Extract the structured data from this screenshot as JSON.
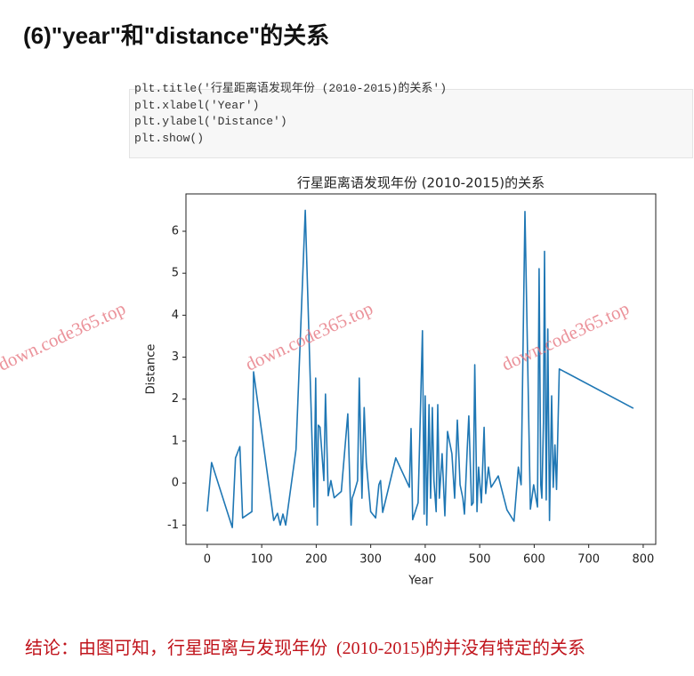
{
  "heading": "(6)\"year\"和\"distance\"的关系",
  "code": {
    "lines": [
      "plt.title('行星距离语发现年份 (2010-2015)的关系')",
      "plt.xlabel('Year')",
      "plt.ylabel('Distance')",
      "plt.show()"
    ]
  },
  "chart_data": {
    "type": "line",
    "title": "行星距离语发现年份 (2010-2015)的关系",
    "xlabel": "Year",
    "ylabel": "Distance",
    "color": "#1f77b4",
    "x": [
      0,
      8,
      46,
      52,
      60,
      65,
      82,
      85,
      122,
      129,
      134,
      139,
      144,
      163,
      180,
      196,
      199,
      202,
      204,
      207,
      214,
      217,
      222,
      227,
      233,
      246,
      258,
      264,
      266,
      269,
      276,
      279,
      284,
      288,
      292,
      300,
      309,
      315,
      318,
      322,
      346,
      371,
      374,
      377,
      387,
      395,
      398,
      400,
      403,
      407,
      410,
      413,
      416,
      420,
      423,
      426,
      431,
      436,
      441,
      449,
      454,
      459,
      464,
      469,
      472,
      477,
      480,
      485,
      488,
      491,
      495,
      498,
      503,
      508,
      511,
      516,
      521,
      534,
      550,
      563,
      571,
      576,
      583,
      593,
      599,
      606,
      609,
      612,
      614,
      617,
      619,
      622,
      625,
      628,
      632,
      635,
      638,
      641,
      646,
      782
    ],
    "values": [
      -0.68,
      0.49,
      -1.06,
      0.6,
      0.87,
      -0.83,
      -0.68,
      2.65,
      -0.89,
      -0.72,
      -1.0,
      -0.74,
      -1.0,
      0.8,
      6.5,
      -0.57,
      2.5,
      -1.0,
      1.38,
      1.33,
      0.06,
      2.12,
      -0.3,
      0.06,
      -0.35,
      -0.2,
      1.65,
      -1.0,
      -0.36,
      -0.25,
      0.06,
      2.5,
      -0.36,
      1.8,
      0.49,
      -0.68,
      -0.83,
      -0.04,
      0.06,
      -0.7,
      0.6,
      -0.1,
      1.3,
      -0.87,
      -0.47,
      3.63,
      -0.74,
      2.08,
      -1.0,
      1.87,
      -0.36,
      1.8,
      0.06,
      -0.68,
      1.87,
      -0.36,
      0.7,
      -0.78,
      1.23,
      0.7,
      -0.36,
      1.5,
      -0.04,
      -0.36,
      -0.74,
      0.8,
      1.6,
      -0.53,
      -0.47,
      2.82,
      -0.68,
      0.38,
      -0.47,
      1.33,
      -0.25,
      0.38,
      -0.1,
      0.17,
      -0.64,
      -0.91,
      0.38,
      -0.04,
      6.47,
      -0.62,
      -0.04,
      -0.57,
      5.11,
      -0.04,
      -0.36,
      1.44,
      5.52,
      -0.4,
      3.67,
      -0.89,
      2.08,
      -0.1,
      0.91,
      -0.15,
      2.72,
      1.78
    ],
    "xlim": [
      -39,
      823
    ],
    "ylim": [
      -1.46,
      6.89
    ],
    "xticks": [
      0,
      100,
      200,
      300,
      400,
      500,
      600,
      700,
      800
    ],
    "yticks": [
      -1,
      0,
      1,
      2,
      3,
      4,
      5,
      6
    ]
  },
  "conclusion": "结论：由图可知，行星距离与发现年份  (2010-2015)的并没有特定的关系",
  "watermarks": [
    "down.code365.top",
    "down.code365.top",
    "down.code365.top"
  ]
}
